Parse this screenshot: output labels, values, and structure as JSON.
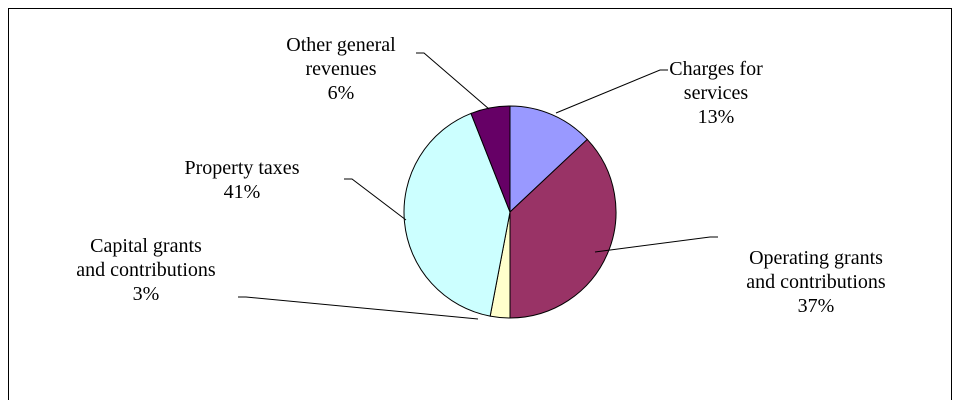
{
  "chart_data": {
    "type": "pie",
    "slices": [
      {
        "label_lines": [
          "Charges for",
          "services"
        ],
        "percent_label": "13%",
        "value": 13,
        "color": "#9999ff"
      },
      {
        "label_lines": [
          "Operating grants",
          "and contributions"
        ],
        "percent_label": "37%",
        "value": 37,
        "color": "#993366"
      },
      {
        "label_lines": [
          "Capital grants",
          "and contributions"
        ],
        "percent_label": "3%",
        "value": 3,
        "color": "#ffffcc"
      },
      {
        "label_lines": [
          "Property taxes"
        ],
        "percent_label": "41%",
        "value": 41,
        "color": "#ccffff"
      },
      {
        "label_lines": [
          "Other general",
          "revenues"
        ],
        "percent_label": "6%",
        "value": 6,
        "color": "#660066"
      }
    ],
    "start_position": "top",
    "direction": "clockwise",
    "legend": "none"
  }
}
